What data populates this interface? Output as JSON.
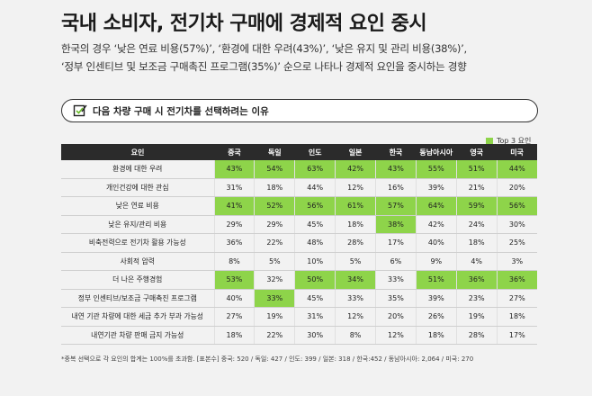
{
  "header": {
    "title": "국내 소비자, 전기차 구매에 경제적 요인 중시",
    "subtitle_lines": [
      "한국의 경우 ‘낮은 연료 비용(57%)’, ‘환경에 대한 우려(43%)’, ‘낮은 유지 및 관리 비용(38%)’,",
      "‘정부 인센티브 및 보조금 구매촉진 프로그램(35%)’ 순으로 나타나 경제적 요인을 중시하는 경향"
    ]
  },
  "section": {
    "label": "다음 차량 구매 시 전기차를 선택하려는 이유",
    "icon": "checkbox-pen-icon"
  },
  "legend": {
    "label": "Top 3 요인",
    "color": "#8ed44a"
  },
  "chart_data": {
    "type": "table",
    "row_header": "요인",
    "columns": [
      "중국",
      "독일",
      "인도",
      "일본",
      "한국",
      "동남아시아",
      "영국",
      "미국"
    ],
    "rows": [
      {
        "label": "환경에 대한 우려",
        "values": [
          "43%",
          "54%",
          "63%",
          "42%",
          "43%",
          "55%",
          "51%",
          "44%"
        ],
        "top3": [
          true,
          true,
          true,
          true,
          true,
          true,
          true,
          true
        ]
      },
      {
        "label": "개인건강에 대한 관심",
        "values": [
          "31%",
          "18%",
          "44%",
          "12%",
          "16%",
          "39%",
          "21%",
          "20%"
        ],
        "top3": [
          false,
          false,
          false,
          false,
          false,
          false,
          false,
          false
        ]
      },
      {
        "label": "낮은 연료 비용",
        "values": [
          "41%",
          "52%",
          "56%",
          "61%",
          "57%",
          "64%",
          "59%",
          "56%"
        ],
        "top3": [
          true,
          true,
          true,
          true,
          true,
          true,
          true,
          true
        ]
      },
      {
        "label": "낮은 유지/관리 비용",
        "values": [
          "29%",
          "29%",
          "45%",
          "18%",
          "38%",
          "42%",
          "24%",
          "30%"
        ],
        "top3": [
          false,
          false,
          false,
          false,
          true,
          false,
          false,
          false
        ]
      },
      {
        "label": "비축전력으로 전기차 활용 가능성",
        "values": [
          "36%",
          "22%",
          "48%",
          "28%",
          "17%",
          "40%",
          "18%",
          "25%"
        ],
        "top3": [
          false,
          false,
          false,
          false,
          false,
          false,
          false,
          false
        ]
      },
      {
        "label": "사회적 압력",
        "values": [
          "8%",
          "5%",
          "10%",
          "5%",
          "6%",
          "9%",
          "4%",
          "3%"
        ],
        "top3": [
          false,
          false,
          false,
          false,
          false,
          false,
          false,
          false
        ]
      },
      {
        "label": "더 나은 주행경험",
        "values": [
          "53%",
          "32%",
          "50%",
          "34%",
          "33%",
          "51%",
          "36%",
          "36%"
        ],
        "top3": [
          true,
          false,
          true,
          true,
          false,
          true,
          true,
          true
        ]
      },
      {
        "label": "정부 인센티브/보조금 구매촉진 프로그램",
        "values": [
          "40%",
          "33%",
          "45%",
          "33%",
          "35%",
          "39%",
          "23%",
          "27%"
        ],
        "top3": [
          false,
          true,
          false,
          false,
          false,
          false,
          false,
          false
        ]
      },
      {
        "label": "내연 기관 차량에 대한 세금 추가 부과 가능성",
        "values": [
          "27%",
          "19%",
          "31%",
          "12%",
          "20%",
          "26%",
          "19%",
          "18%"
        ],
        "top3": [
          false,
          false,
          false,
          false,
          false,
          false,
          false,
          false
        ]
      },
      {
        "label": "내연기관 차량 판매 금지 가능성",
        "values": [
          "18%",
          "22%",
          "30%",
          "8%",
          "12%",
          "18%",
          "28%",
          "17%"
        ],
        "top3": [
          false,
          false,
          false,
          false,
          false,
          false,
          false,
          false
        ]
      }
    ]
  },
  "footnote": "*중복 선택으로 각 요인의 합계는 100%를 초과함. [표본수] 중국: 520 / 독일: 427 / 인도: 399 / 일본: 318 / 한국:452 / 동남아시아: 2,064 / 미국: 270"
}
